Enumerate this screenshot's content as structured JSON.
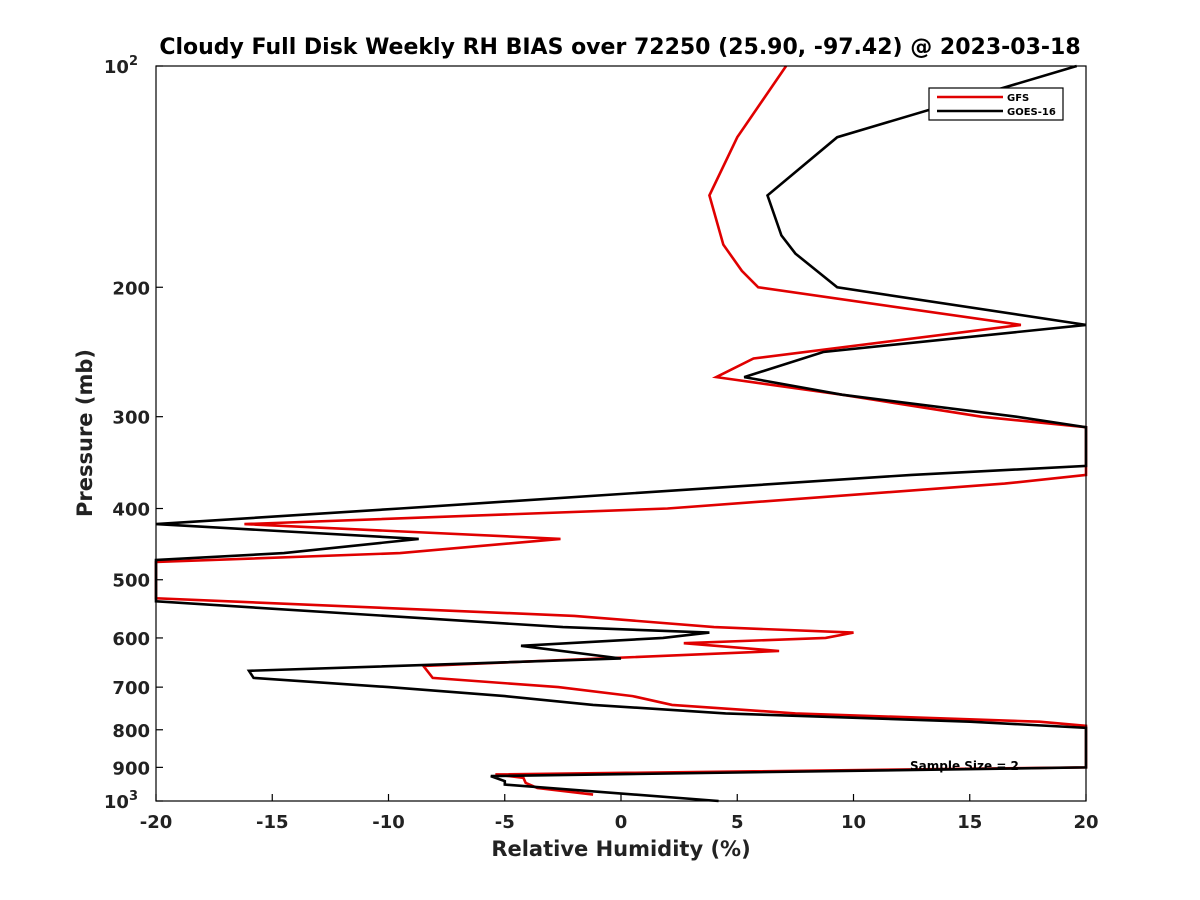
{
  "chart_data": {
    "type": "line",
    "title": "Cloudy Full Disk Weekly RH BIAS over 72250 (25.90, -97.42) @ 2023-03-18",
    "xlabel": "Relative Humidity (%)",
    "ylabel": "Pressure (mb)",
    "xlim": [
      -20,
      20
    ],
    "ylim": [
      1000,
      100
    ],
    "yscale": "log",
    "grid": false,
    "legend_position": "top-right",
    "x_ticks": [
      {
        "value": -20,
        "label": "-20"
      },
      {
        "value": -15,
        "label": "-15"
      },
      {
        "value": -10,
        "label": "-10"
      },
      {
        "value": -5,
        "label": "-5"
      },
      {
        "value": 0,
        "label": "0"
      },
      {
        "value": 5,
        "label": "5"
      },
      {
        "value": 10,
        "label": "10"
      },
      {
        "value": 15,
        "label": "15"
      },
      {
        "value": 20,
        "label": "20"
      }
    ],
    "y_ticks": [
      {
        "value": 100,
        "base": "10",
        "exp": "2"
      },
      {
        "value": 200,
        "label": "200"
      },
      {
        "value": 300,
        "label": "300"
      },
      {
        "value": 400,
        "label": "400"
      },
      {
        "value": 500,
        "label": "500"
      },
      {
        "value": 600,
        "label": "600"
      },
      {
        "value": 700,
        "label": "700"
      },
      {
        "value": 800,
        "label": "800"
      },
      {
        "value": 900,
        "label": "900"
      },
      {
        "value": 1000,
        "base": "10",
        "exp": "3"
      }
    ],
    "annotation": "Sample Size = 2",
    "series": [
      {
        "name": "GFS",
        "color": "#e00000",
        "points": [
          [
            7.1,
            100
          ],
          [
            5.0,
            125
          ],
          [
            3.8,
            150
          ],
          [
            4.4,
            175
          ],
          [
            5.2,
            190
          ],
          [
            5.9,
            200
          ],
          [
            17.2,
            225
          ],
          [
            5.7,
            250
          ],
          [
            4.1,
            265
          ],
          [
            9.5,
            280
          ],
          [
            15.5,
            300
          ],
          [
            20.0,
            310
          ],
          [
            20.0,
            360
          ],
          [
            16.5,
            370
          ],
          [
            2.0,
            400
          ],
          [
            -16.2,
            420
          ],
          [
            -2.6,
            440
          ],
          [
            -9.5,
            460
          ],
          [
            -20.0,
            473
          ],
          [
            -20.0,
            530
          ],
          [
            -2.0,
            560
          ],
          [
            4.0,
            580
          ],
          [
            10.0,
            590
          ],
          [
            8.8,
            600
          ],
          [
            2.7,
            610
          ],
          [
            6.8,
            625
          ],
          [
            -8.5,
            655
          ],
          [
            -8.1,
            680
          ],
          [
            -2.7,
            700
          ],
          [
            0.5,
            720
          ],
          [
            2.2,
            740
          ],
          [
            7.5,
            760
          ],
          [
            18.0,
            780
          ],
          [
            20.0,
            790
          ],
          [
            20.0,
            900
          ],
          [
            -5.4,
            920
          ],
          [
            -4.2,
            930
          ],
          [
            -4.1,
            945
          ],
          [
            -3.6,
            960
          ],
          [
            -1.2,
            980
          ]
        ]
      },
      {
        "name": "GOES-16",
        "color": "#000000",
        "points": [
          [
            19.6,
            100
          ],
          [
            9.3,
            125
          ],
          [
            6.3,
            150
          ],
          [
            6.9,
            170
          ],
          [
            7.5,
            180
          ],
          [
            9.3,
            200
          ],
          [
            20.0,
            225
          ],
          [
            8.7,
            245
          ],
          [
            5.3,
            265
          ],
          [
            9.5,
            280
          ],
          [
            17.0,
            300
          ],
          [
            20.0,
            310
          ],
          [
            20.0,
            350
          ],
          [
            12.5,
            360
          ],
          [
            -9.5,
            400
          ],
          [
            -20.0,
            420
          ],
          [
            -8.7,
            440
          ],
          [
            -14.5,
            460
          ],
          [
            -20.0,
            470
          ],
          [
            -20.0,
            535
          ],
          [
            -2.5,
            580
          ],
          [
            3.8,
            590
          ],
          [
            1.8,
            600
          ],
          [
            -4.3,
            615
          ],
          [
            0.0,
            640
          ],
          [
            -16.0,
            665
          ],
          [
            -15.8,
            680
          ],
          [
            -10.0,
            700
          ],
          [
            -5.0,
            720
          ],
          [
            -1.2,
            740
          ],
          [
            4.5,
            760
          ],
          [
            15.0,
            780
          ],
          [
            20.0,
            795
          ],
          [
            20.0,
            900
          ],
          [
            -5.6,
            925
          ],
          [
            -5.0,
            940
          ],
          [
            -5.0,
            950
          ],
          [
            4.2,
            1000
          ]
        ]
      }
    ]
  }
}
